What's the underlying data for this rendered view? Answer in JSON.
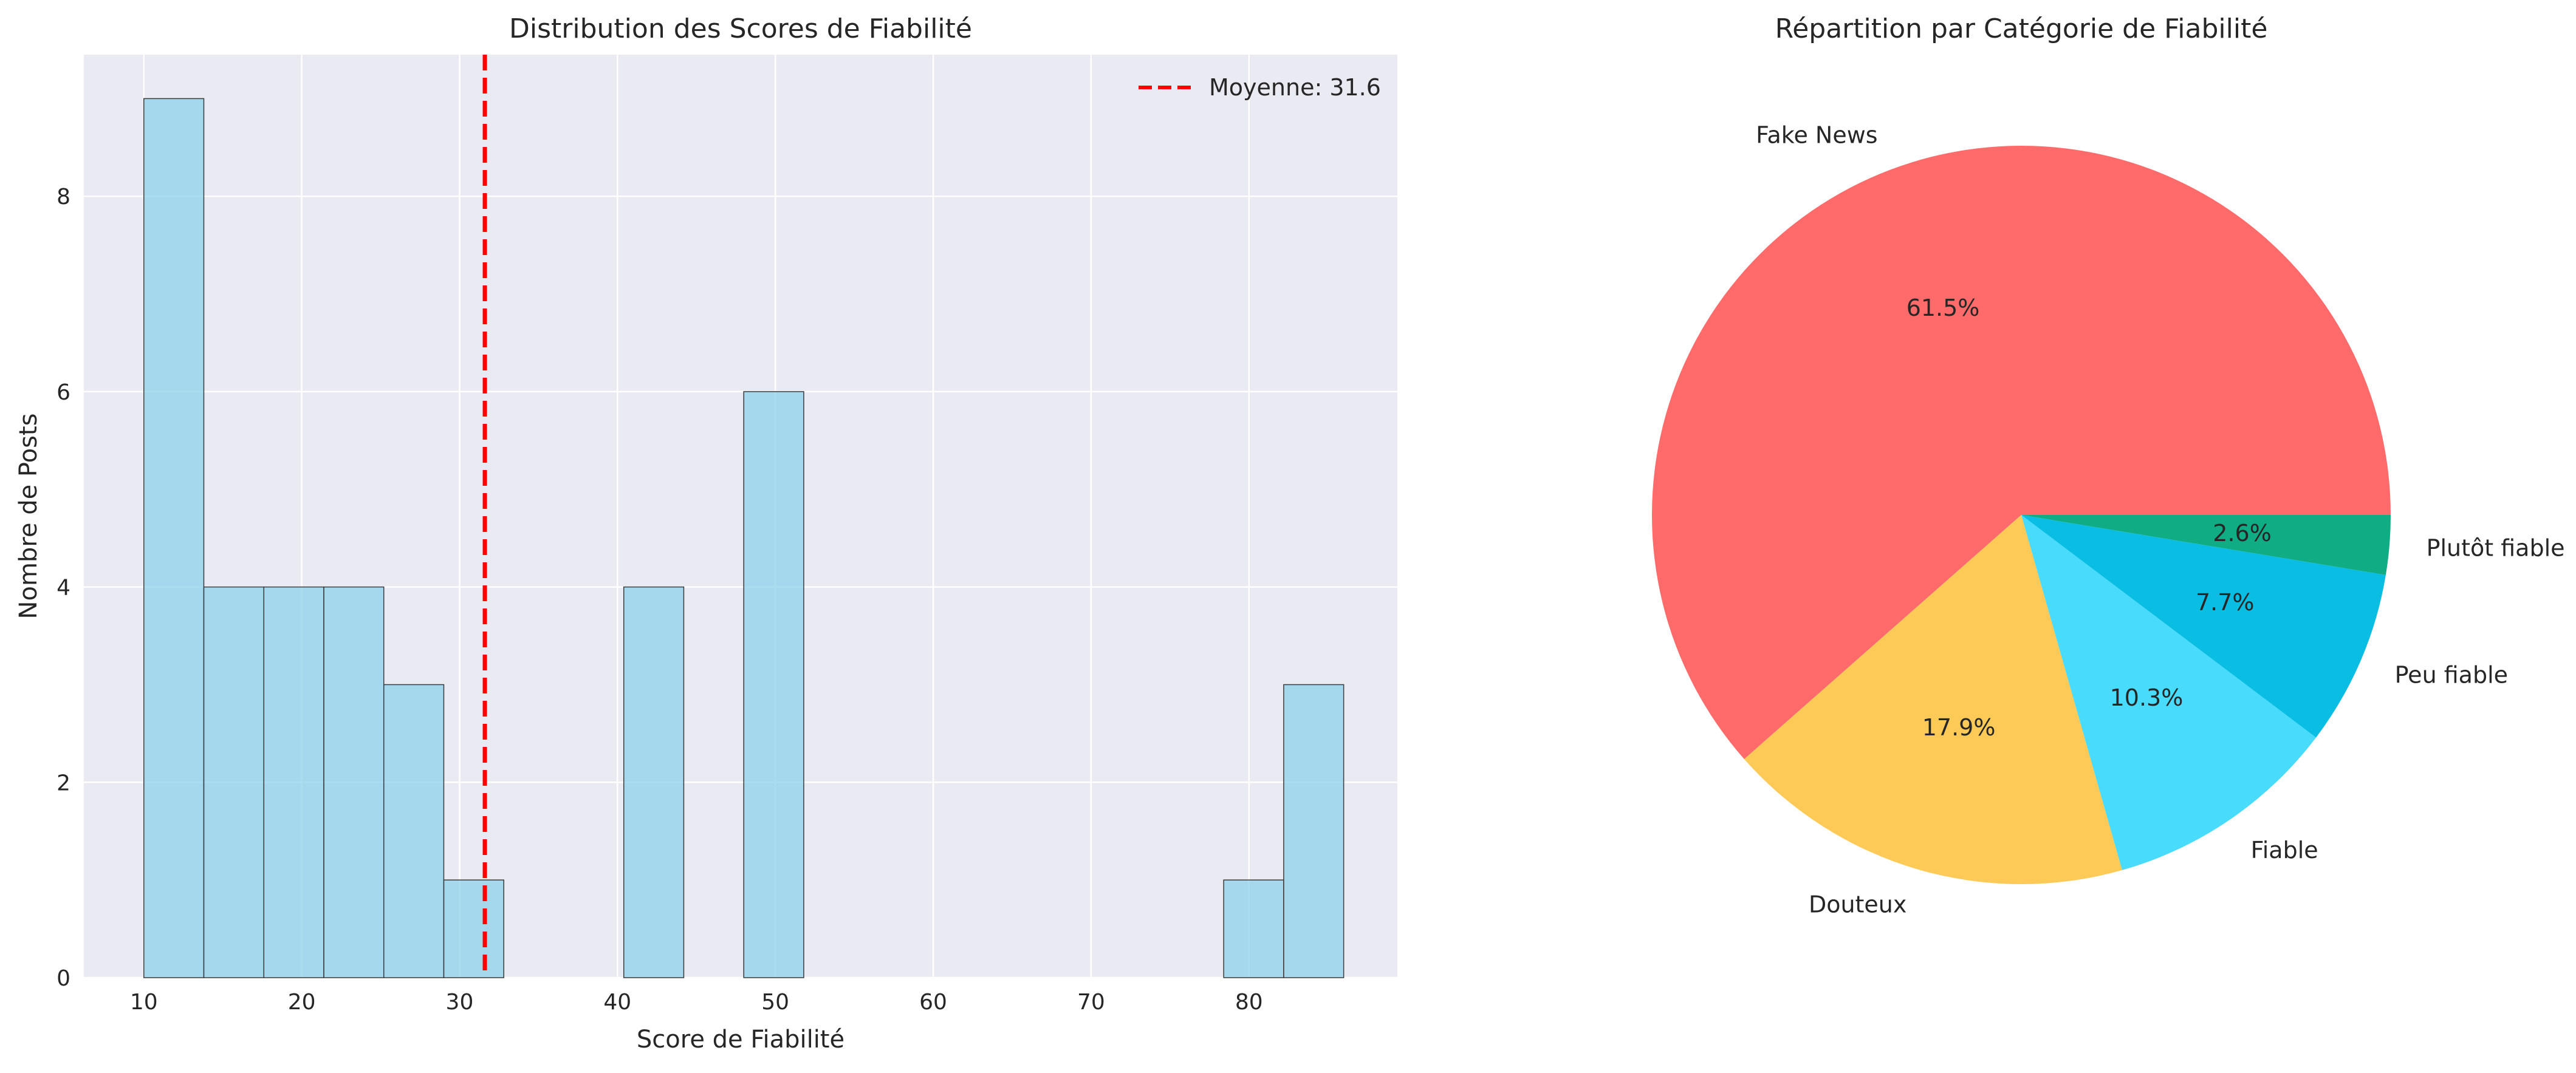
{
  "chart_data": [
    {
      "type": "bar",
      "title": "Distribution des Scores de Fiabilité",
      "xlabel": "Score de Fiabilité",
      "ylabel": "Nombre de Posts",
      "xlim": [
        6.2,
        89.4
      ],
      "ylim": [
        0,
        9.45
      ],
      "xticks": [
        10,
        20,
        30,
        40,
        50,
        60,
        70,
        80
      ],
      "yticks": [
        0,
        2,
        4,
        6,
        8
      ],
      "grid": true,
      "legend_position": "top-right",
      "bar_color": "#87CEEB",
      "bins": [
        {
          "x0": 10.0,
          "x1": 13.8,
          "count": 9
        },
        {
          "x0": 13.8,
          "x1": 17.6,
          "count": 4
        },
        {
          "x0": 17.6,
          "x1": 21.4,
          "count": 4
        },
        {
          "x0": 21.4,
          "x1": 25.2,
          "count": 4
        },
        {
          "x0": 25.2,
          "x1": 29.0,
          "count": 3
        },
        {
          "x0": 29.0,
          "x1": 32.8,
          "count": 1
        },
        {
          "x0": 32.8,
          "x1": 36.6,
          "count": 0
        },
        {
          "x0": 36.6,
          "x1": 40.4,
          "count": 0
        },
        {
          "x0": 40.4,
          "x1": 44.2,
          "count": 4
        },
        {
          "x0": 44.2,
          "x1": 48.0,
          "count": 0
        },
        {
          "x0": 48.0,
          "x1": 51.8,
          "count": 6
        },
        {
          "x0": 51.8,
          "x1": 55.6,
          "count": 0
        },
        {
          "x0": 55.6,
          "x1": 59.4,
          "count": 0
        },
        {
          "x0": 59.4,
          "x1": 63.2,
          "count": 0
        },
        {
          "x0": 63.2,
          "x1": 67.0,
          "count": 0
        },
        {
          "x0": 67.0,
          "x1": 70.8,
          "count": 0
        },
        {
          "x0": 70.8,
          "x1": 74.6,
          "count": 0
        },
        {
          "x0": 74.6,
          "x1": 78.4,
          "count": 0
        },
        {
          "x0": 78.4,
          "x1": 82.2,
          "count": 1
        },
        {
          "x0": 82.2,
          "x1": 86.0,
          "count": 3
        }
      ],
      "mean_line": {
        "value": 31.6,
        "label": "Moyenne: 31.6",
        "color": "#ff0000"
      }
    },
    {
      "type": "pie",
      "title": "Répartition par Catégorie de Fiabilité",
      "slices": [
        {
          "label": "Fake News",
          "value": 61.5,
          "pct_label": "61.5%",
          "color": "#FF6B6B"
        },
        {
          "label": "Douteux",
          "value": 17.9,
          "pct_label": "17.9%",
          "color": "#FECA57"
        },
        {
          "label": "Fiable",
          "value": 10.3,
          "pct_label": "10.3%",
          "color": "#48DBFB"
        },
        {
          "label": "Peu fiable",
          "value": 7.7,
          "pct_label": "7.7%",
          "color": "#0ABDE3"
        },
        {
          "label": "Plutôt fiable",
          "value": 2.6,
          "pct_label": "2.6%",
          "color": "#10AC84"
        }
      ]
    }
  ]
}
